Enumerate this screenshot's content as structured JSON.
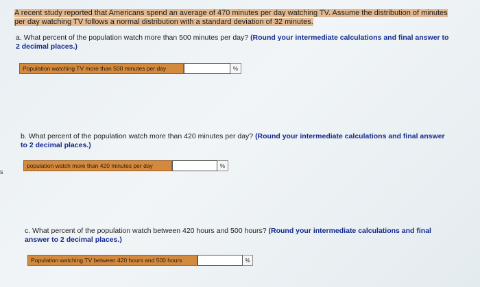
{
  "intro": "A recent study reported that Americans spend an average of 470 minutes per day watching TV. Assume the distribution of minutes per day watching TV follows a normal distribution with a standard deviation of 32 minutes.",
  "parts": [
    {
      "letter": "a.",
      "question": "What percent of the population watch more than 500 minutes per day?",
      "instruction": "(Round your intermediate calculations and final answer to 2 decimal places.)",
      "label": "Population watching TV more than 500 minutes per day",
      "value": "",
      "unit": "%"
    },
    {
      "letter": "b.",
      "question": "What percent of the population watch more than 420 minutes per day?",
      "instruction": "(Round your intermediate calculations and final answer to 2 decimal places.)",
      "label": "population watch more than 420 minutes per day",
      "value": "",
      "unit": "%"
    },
    {
      "letter": "c.",
      "question": "What percent of the population watch between 420 hours and 500 hours?",
      "instruction": "(Round your intermediate calculations and final answer to 2 decimal places.)",
      "label": "Population watching TV between 420 hours and 500 hours",
      "value": "",
      "unit": "%"
    }
  ],
  "edge_text": "s",
  "colors": {
    "highlight": "#e2b990",
    "label_bg": "#d48a3e",
    "instruction": "#142a8c"
  }
}
